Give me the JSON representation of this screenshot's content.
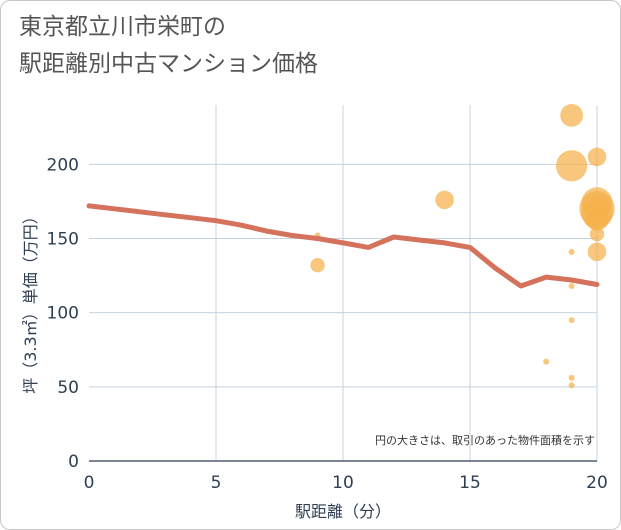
{
  "title": {
    "line1": "東京都立川市栄町の",
    "line2": "駅距離別中古マンション価格"
  },
  "colors": {
    "bubble": "#f5b04a",
    "line": "#d4725c",
    "grid": "#c5d3e0",
    "plot_bg": "#ffffff",
    "text": "#2f3f52"
  },
  "chart_data": {
    "type": "scatter",
    "title": "東京都立川市栄町の駅距離別中古マンション価格",
    "xlabel": "駅距離（分）",
    "ylabel": "坪（3.3㎡）単価（万円）",
    "xlim": [
      0,
      20
    ],
    "ylim": [
      0,
      240
    ],
    "xticks": [
      0,
      5,
      10,
      15,
      20
    ],
    "yticks": [
      0,
      50,
      100,
      150,
      200
    ],
    "grid": true,
    "note": "円の大きさは、取引のあった物件面積を示す",
    "scatter": [
      {
        "x": 9,
        "y": 152,
        "size": 1
      },
      {
        "x": 9,
        "y": 132,
        "size": 3
      },
      {
        "x": 14,
        "y": 176,
        "size": 4
      },
      {
        "x": 18,
        "y": 67,
        "size": 1
      },
      {
        "x": 19,
        "y": 233,
        "size": 5
      },
      {
        "x": 19,
        "y": 199,
        "size": 7
      },
      {
        "x": 19,
        "y": 141,
        "size": 1
      },
      {
        "x": 19,
        "y": 118,
        "size": 1
      },
      {
        "x": 19,
        "y": 95,
        "size": 1
      },
      {
        "x": 19,
        "y": 56,
        "size": 1
      },
      {
        "x": 19,
        "y": 51,
        "size": 1
      },
      {
        "x": 20,
        "y": 205,
        "size": 4
      },
      {
        "x": 20,
        "y": 174,
        "size": 7
      },
      {
        "x": 20,
        "y": 170,
        "size": 8
      },
      {
        "x": 20,
        "y": 167,
        "size": 7
      },
      {
        "x": 20,
        "y": 163,
        "size": 5
      },
      {
        "x": 20,
        "y": 153,
        "size": 3
      },
      {
        "x": 20,
        "y": 141,
        "size": 4
      }
    ],
    "line": {
      "x": [
        0,
        1,
        2,
        3,
        4,
        5,
        6,
        7,
        8,
        9,
        10,
        11,
        12,
        13,
        14,
        15,
        16,
        17,
        18,
        19,
        20
      ],
      "y": [
        172,
        170,
        168,
        166,
        164,
        162,
        159,
        155,
        152,
        150,
        147,
        144,
        151,
        149,
        147,
        144,
        130,
        118,
        124,
        122,
        119
      ]
    }
  }
}
